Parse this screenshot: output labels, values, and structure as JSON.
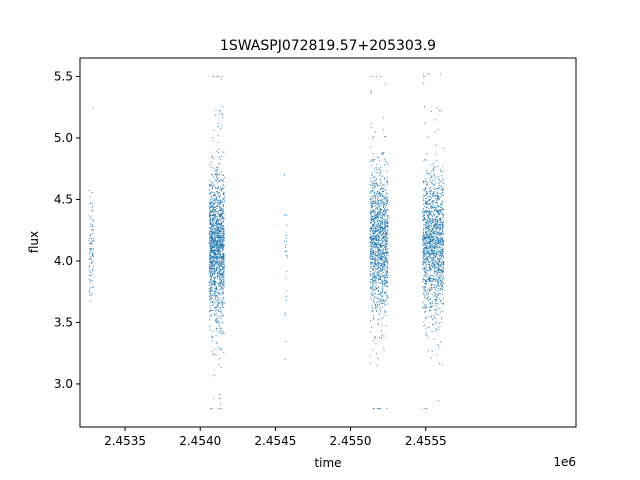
{
  "chart_data": {
    "type": "scatter",
    "title": "1SWASPJ072819.57+205303.9",
    "xlabel": "time",
    "ylabel": "flux",
    "x_offset_label": "1e6",
    "xlim": [
      2453200,
      2456500
    ],
    "ylim": [
      2.65,
      5.65
    ],
    "x_ticks": [
      {
        "value": 2453500,
        "label": "2.4535"
      },
      {
        "value": 2454000,
        "label": "2.4540"
      },
      {
        "value": 2454500,
        "label": "2.4545"
      },
      {
        "value": 2455000,
        "label": "2.4550"
      },
      {
        "value": 2455500,
        "label": "2.4555"
      }
    ],
    "y_ticks": [
      {
        "value": 3.0,
        "label": "3.0"
      },
      {
        "value": 3.5,
        "label": "3.5"
      },
      {
        "value": 4.0,
        "label": "4.0"
      },
      {
        "value": 4.5,
        "label": "4.5"
      },
      {
        "value": 5.0,
        "label": "5.0"
      },
      {
        "value": 5.5,
        "label": "5.5"
      }
    ],
    "grid": false,
    "marker_color": "#1f77b4",
    "observing_seasons": [
      {
        "x_range": [
          2453260,
          2453290
        ],
        "y_center": 4.12,
        "y_spread": 0.22,
        "y_min": 3.4,
        "y_max": 5.4,
        "points": 90
      },
      {
        "x_range": [
          2454060,
          2454160
        ],
        "y_center": 4.12,
        "y_spread": 0.28,
        "y_min": 2.8,
        "y_max": 5.5,
        "points": 1500
      },
      {
        "x_range": [
          2454560,
          2454580
        ],
        "y_center": 3.9,
        "y_spread": 0.3,
        "y_min": 3.2,
        "y_max": 4.7,
        "points": 25
      },
      {
        "x_range": [
          2455130,
          2455250
        ],
        "y_center": 4.15,
        "y_spread": 0.28,
        "y_min": 2.8,
        "y_max": 5.5,
        "points": 1300
      },
      {
        "x_range": [
          2455480,
          2455620
        ],
        "y_center": 4.15,
        "y_spread": 0.28,
        "y_min": 2.8,
        "y_max": 5.52,
        "points": 1400
      }
    ]
  }
}
